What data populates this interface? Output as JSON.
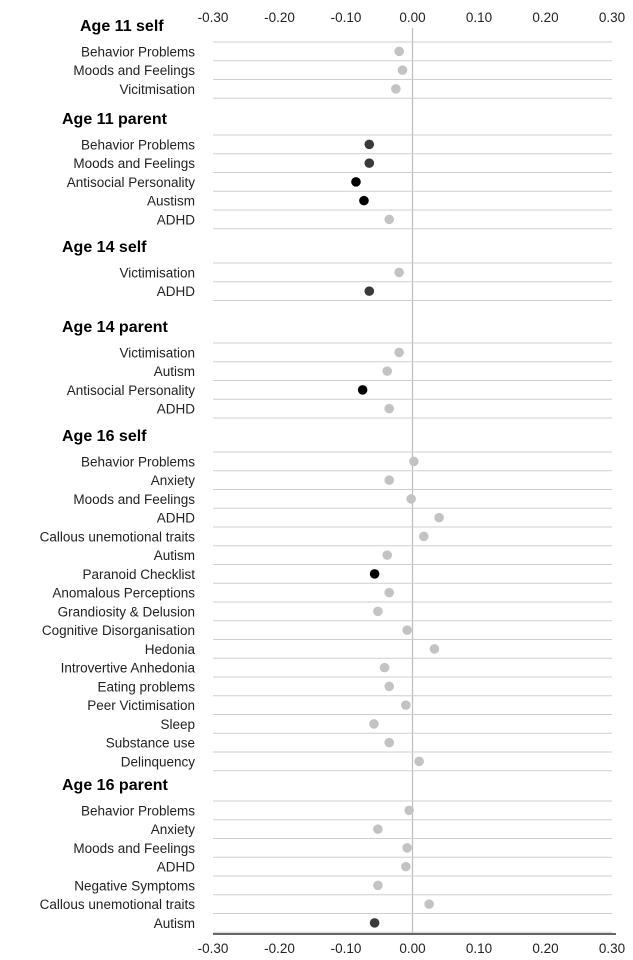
{
  "chart_data": {
    "type": "scatter",
    "title": "",
    "xlabel": "",
    "ylabel": "",
    "xlim": [
      -0.3,
      0.3
    ],
    "xticks": [
      "-0.30",
      "-0.20",
      "-0.10",
      "0.00",
      "0.10",
      "0.20",
      "0.30"
    ],
    "grid": true,
    "significance_colors": {
      "not_significant": "#c3c3c3",
      "significant": "#3a3a3a",
      "most_significant": "#000000"
    },
    "groups": [
      {
        "name": "Age 11 self",
        "rows": [
          {
            "label": "Behavior Problems",
            "value": -0.02,
            "level": "not_significant"
          },
          {
            "label": "Moods and Feelings",
            "value": -0.015,
            "level": "not_significant"
          },
          {
            "label": "Vicitmisation",
            "value": -0.025,
            "level": "not_significant"
          }
        ]
      },
      {
        "name": "Age 11 parent",
        "rows": [
          {
            "label": "Behavior Problems",
            "value": -0.065,
            "level": "significant"
          },
          {
            "label": "Moods and Feelings",
            "value": -0.065,
            "level": "significant"
          },
          {
            "label": "Antisocial Personality",
            "value": -0.085,
            "level": "most_significant"
          },
          {
            "label": "Austism",
            "value": -0.073,
            "level": "most_significant"
          },
          {
            "label": "ADHD",
            "value": -0.035,
            "level": "not_significant"
          }
        ]
      },
      {
        "name": "Age 14 self",
        "rows": [
          {
            "label": "Victimisation",
            "value": -0.02,
            "level": "not_significant"
          },
          {
            "label": "ADHD",
            "value": -0.065,
            "level": "significant"
          }
        ]
      },
      {
        "name": "Age 14 parent",
        "rows": [
          {
            "label": "Victimisation",
            "value": -0.02,
            "level": "not_significant"
          },
          {
            "label": "Autism",
            "value": -0.038,
            "level": "not_significant"
          },
          {
            "label": "Antisocial Personality",
            "value": -0.075,
            "level": "most_significant"
          },
          {
            "label": "ADHD",
            "value": -0.035,
            "level": "not_significant"
          }
        ]
      },
      {
        "name": "Age 16 self",
        "rows": [
          {
            "label": "Behavior Problems",
            "value": 0.002,
            "level": "not_significant"
          },
          {
            "label": "Anxiety",
            "value": -0.035,
            "level": "not_significant"
          },
          {
            "label": "Moods and Feelings",
            "value": -0.002,
            "level": "not_significant"
          },
          {
            "label": "ADHD",
            "value": 0.04,
            "level": "not_significant"
          },
          {
            "label": "Callous unemotional traits",
            "value": 0.017,
            "level": "not_significant"
          },
          {
            "label": "Autism",
            "value": -0.038,
            "level": "not_significant"
          },
          {
            "label": "Paranoid Checklist",
            "value": -0.057,
            "level": "most_significant"
          },
          {
            "label": "Anomalous Perceptions",
            "value": -0.035,
            "level": "not_significant"
          },
          {
            "label": "Grandiosity & Delusion",
            "value": -0.052,
            "level": "not_significant"
          },
          {
            "label": "Cognitive Disorganisation",
            "value": -0.008,
            "level": "not_significant"
          },
          {
            "label": "Hedonia",
            "value": 0.033,
            "level": "not_significant"
          },
          {
            "label": "Introvertive Anhedonia",
            "value": -0.042,
            "level": "not_significant"
          },
          {
            "label": "Eating problems",
            "value": -0.035,
            "level": "not_significant"
          },
          {
            "label": "Peer Victimisation",
            "value": -0.01,
            "level": "not_significant"
          },
          {
            "label": "Sleep",
            "value": -0.058,
            "level": "not_significant"
          },
          {
            "label": "Substance use",
            "value": -0.035,
            "level": "not_significant"
          },
          {
            "label": "Delinquency",
            "value": 0.01,
            "level": "not_significant"
          }
        ]
      },
      {
        "name": "Age 16 parent",
        "rows": [
          {
            "label": "Behavior Problems",
            "value": -0.005,
            "level": "not_significant"
          },
          {
            "label": "Anxiety",
            "value": -0.052,
            "level": "not_significant"
          },
          {
            "label": "Moods and Feelings",
            "value": -0.008,
            "level": "not_significant"
          },
          {
            "label": "ADHD",
            "value": -0.01,
            "level": "not_significant"
          },
          {
            "label": "Negative Symptoms",
            "value": -0.052,
            "level": "not_significant"
          },
          {
            "label": "Callous unemotional traits",
            "value": 0.025,
            "level": "not_significant"
          },
          {
            "label": "Autism",
            "value": -0.057,
            "level": "significant"
          }
        ]
      }
    ]
  }
}
